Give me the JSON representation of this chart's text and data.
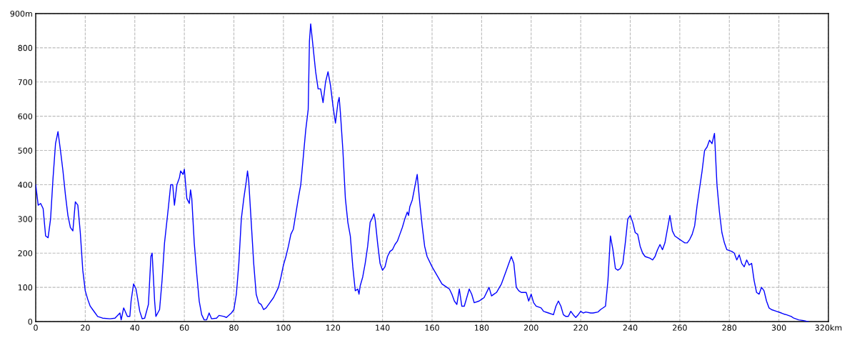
{
  "chart_data": {
    "type": "line",
    "x": [
      0,
      1,
      2,
      3,
      4,
      5,
      6,
      7,
      8,
      9,
      10,
      11,
      12,
      13,
      14,
      15,
      16,
      17,
      18,
      19,
      20,
      21,
      22,
      23,
      24,
      25,
      27,
      30,
      32,
      34,
      34.5,
      35.5,
      37,
      38,
      38.5,
      39.5,
      40.5,
      42,
      43,
      44,
      45.5,
      46.5,
      47,
      48,
      48.5,
      50,
      51,
      52,
      53.5,
      54.5,
      55.3,
      56,
      57,
      58,
      58.5,
      59.5,
      60,
      61,
      62,
      62.5,
      63,
      64,
      65,
      66,
      67,
      68,
      69,
      70,
      71,
      73,
      74,
      76,
      77,
      79,
      80,
      81,
      82,
      83,
      84,
      85,
      85.5,
      86,
      87,
      88,
      89,
      90,
      91,
      92,
      93,
      94,
      96,
      98,
      99,
      100,
      101,
      102,
      103,
      104,
      106,
      107,
      108,
      109,
      110,
      110.5,
      111,
      112,
      113,
      114,
      115,
      116,
      117,
      118,
      119,
      120,
      121,
      122,
      122.5,
      123,
      124,
      125,
      126,
      127,
      128,
      129,
      130,
      130.5,
      131,
      132,
      133,
      134,
      135,
      136,
      136.5,
      137,
      138,
      139,
      140,
      141,
      142,
      143,
      144,
      145,
      146,
      147,
      148,
      149,
      150,
      150.5,
      151,
      152,
      154,
      155,
      156,
      157,
      158,
      160,
      162,
      164,
      166,
      167,
      168,
      169,
      170,
      171,
      172,
      173,
      174,
      175,
      176,
      177,
      179,
      180,
      181,
      183,
      184,
      185,
      186,
      188,
      190,
      191,
      192,
      193,
      194,
      195,
      196,
      198,
      199,
      200,
      201,
      202,
      204,
      205,
      207,
      209,
      210,
      211,
      212,
      213,
      214,
      215,
      216,
      217,
      218,
      219,
      220,
      221,
      222,
      224,
      225,
      227,
      228,
      230,
      231,
      232,
      233,
      234,
      235,
      236,
      237,
      238,
      239,
      240,
      241,
      242,
      243,
      244,
      245,
      246,
      248,
      249,
      250,
      251,
      252,
      253,
      254,
      255,
      256,
      257,
      258,
      260,
      261,
      262,
      263,
      264,
      265,
      266,
      267,
      268,
      269,
      270,
      271,
      272,
      273,
      274,
      275,
      276,
      277,
      278,
      279,
      281,
      282,
      283,
      284,
      285,
      286,
      287,
      288,
      289,
      290,
      291,
      292,
      293,
      294,
      295,
      296,
      297,
      299,
      301,
      302,
      303,
      305,
      306,
      308,
      310,
      311,
      312
    ],
    "values": [
      400,
      340,
      345,
      330,
      250,
      245,
      300,
      420,
      520,
      555,
      500,
      440,
      370,
      310,
      275,
      265,
      350,
      340,
      260,
      150,
      90,
      65,
      45,
      35,
      25,
      15,
      10,
      8,
      10,
      25,
      5,
      40,
      15,
      15,
      60,
      110,
      95,
      30,
      8,
      10,
      50,
      190,
      200,
      60,
      15,
      35,
      120,
      230,
      330,
      400,
      400,
      340,
      400,
      420,
      440,
      430,
      445,
      360,
      345,
      385,
      360,
      230,
      140,
      60,
      20,
      5,
      5,
      25,
      8,
      10,
      18,
      15,
      12,
      25,
      35,
      80,
      170,
      300,
      360,
      410,
      440,
      410,
      290,
      170,
      80,
      55,
      50,
      35,
      40,
      50,
      70,
      100,
      130,
      165,
      190,
      220,
      255,
      270,
      360,
      400,
      480,
      560,
      620,
      820,
      870,
      800,
      730,
      680,
      680,
      640,
      700,
      730,
      690,
      630,
      580,
      640,
      655,
      610,
      500,
      360,
      290,
      250,
      160,
      90,
      95,
      80,
      105,
      130,
      170,
      220,
      290,
      305,
      315,
      300,
      230,
      170,
      150,
      160,
      190,
      205,
      210,
      225,
      235,
      255,
      275,
      300,
      320,
      310,
      335,
      355,
      430,
      350,
      280,
      220,
      190,
      160,
      135,
      110,
      100,
      95,
      80,
      60,
      50,
      95,
      45,
      45,
      70,
      95,
      80,
      55,
      60,
      65,
      70,
      100,
      75,
      80,
      85,
      110,
      150,
      170,
      190,
      170,
      100,
      90,
      85,
      85,
      60,
      80,
      55,
      45,
      40,
      30,
      25,
      20,
      45,
      60,
      45,
      20,
      15,
      15,
      30,
      20,
      12,
      20,
      30,
      25,
      28,
      25,
      25,
      28,
      35,
      45,
      120,
      250,
      210,
      155,
      150,
      155,
      170,
      230,
      300,
      310,
      290,
      260,
      255,
      220,
      200,
      190,
      185,
      180,
      190,
      210,
      225,
      210,
      230,
      270,
      310,
      265,
      250,
      240,
      235,
      230,
      230,
      240,
      255,
      280,
      340,
      390,
      440,
      500,
      510,
      530,
      520,
      550,
      400,
      320,
      260,
      230,
      210,
      205,
      200,
      180,
      195,
      170,
      160,
      180,
      165,
      170,
      120,
      85,
      80,
      100,
      90,
      60,
      40,
      35,
      30,
      25,
      22,
      20,
      15,
      10,
      5,
      3,
      1,
      0
    ],
    "color": "#0000ff",
    "xlim": [
      0,
      320
    ],
    "xticks": [
      0,
      20,
      40,
      60,
      80,
      100,
      120,
      140,
      160,
      180,
      200,
      220,
      240,
      260,
      280,
      300,
      {
        "value": 320,
        "label": "320km"
      }
    ],
    "ylim": [
      0,
      900
    ],
    "yticks": [
      0,
      100,
      200,
      300,
      400,
      500,
      600,
      700,
      800,
      {
        "value": 900,
        "label": "900m"
      }
    ],
    "grid": true,
    "marker": "none",
    "line_style": "solid"
  }
}
